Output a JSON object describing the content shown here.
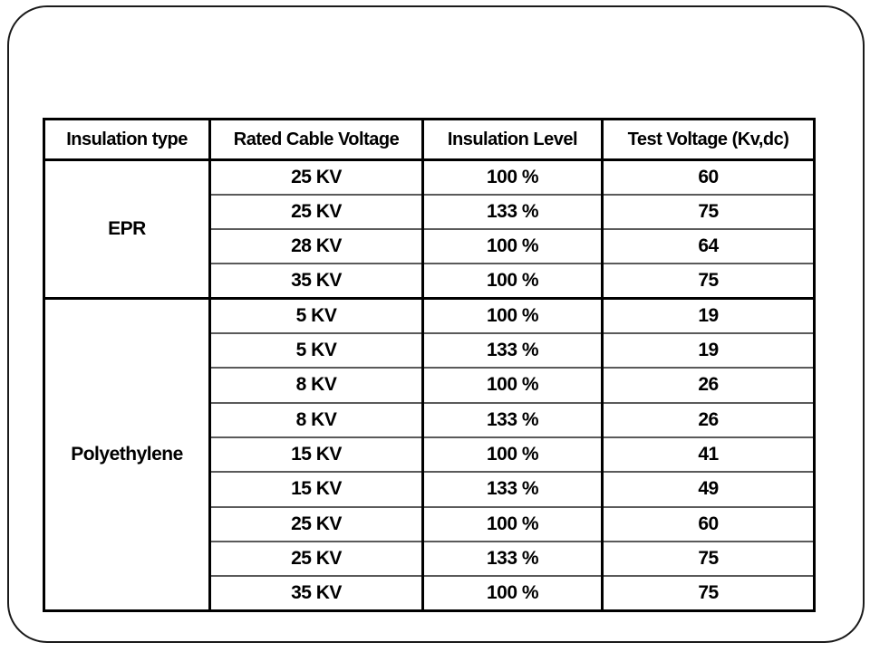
{
  "slide": {
    "background_color": "#ffffff",
    "frame_border_color": "#1a1a1a"
  },
  "table": {
    "headers": [
      "Insulation type",
      "Rated Cable Voltage",
      "Insulation Level",
      "Test Voltage (Kv,dc)"
    ],
    "groups": [
      {
        "insulation_type": "EPR",
        "rows": [
          {
            "rated_cable_voltage": "25 KV",
            "insulation_level": "100 %",
            "test_voltage": "60"
          },
          {
            "rated_cable_voltage": "25 KV",
            "insulation_level": "133 %",
            "test_voltage": "75"
          },
          {
            "rated_cable_voltage": "28 KV",
            "insulation_level": "100 %",
            "test_voltage": "64"
          },
          {
            "rated_cable_voltage": "35 KV",
            "insulation_level": "100 %",
            "test_voltage": "75"
          }
        ]
      },
      {
        "insulation_type": "Polyethylene",
        "rows": [
          {
            "rated_cable_voltage": "5 KV",
            "insulation_level": "100 %",
            "test_voltage": "19"
          },
          {
            "rated_cable_voltage": "5 KV",
            "insulation_level": "133 %",
            "test_voltage": "19"
          },
          {
            "rated_cable_voltage": "8 KV",
            "insulation_level": "100 %",
            "test_voltage": "26"
          },
          {
            "rated_cable_voltage": "8 KV",
            "insulation_level": "133 %",
            "test_voltage": "26"
          },
          {
            "rated_cable_voltage": "15 KV",
            "insulation_level": "100 %",
            "test_voltage": "41"
          },
          {
            "rated_cable_voltage": "15 KV",
            "insulation_level": "133 %",
            "test_voltage": "49"
          },
          {
            "rated_cable_voltage": "25 KV",
            "insulation_level": "100 %",
            "test_voltage": "60"
          },
          {
            "rated_cable_voltage": "25 KV",
            "insulation_level": "133 %",
            "test_voltage": "75"
          },
          {
            "rated_cable_voltage": "35 KV",
            "insulation_level": "100 %",
            "test_voltage": "75"
          }
        ]
      }
    ]
  }
}
